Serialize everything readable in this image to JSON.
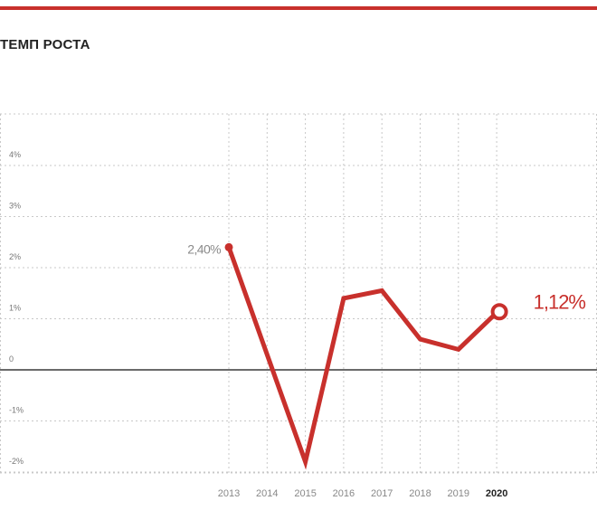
{
  "title": "ТЕМП РОСТА",
  "colors": {
    "accent": "#c8302c",
    "grid": "#c8c8c8",
    "zero_line": "#111111",
    "first_label": "#8a8a8a"
  },
  "chart_data": {
    "type": "line",
    "title": "ТЕМП РОСТА",
    "x": [
      2013,
      2014,
      2015,
      2016,
      2017,
      2018,
      2019,
      2020
    ],
    "x_labels": [
      "2013",
      "2014",
      "2015",
      "2016",
      "2017",
      "2018",
      "2019",
      "2020"
    ],
    "series": [
      {
        "values": [
          2.4,
          0.3,
          -1.8,
          1.4,
          1.55,
          0.6,
          0.4,
          1.12
        ]
      }
    ],
    "y_ticks": [
      4,
      3,
      2,
      1,
      0,
      -1,
      -2
    ],
    "y_tick_labels": [
      "4%",
      "3%",
      "2%",
      "1%",
      "0",
      "-1%",
      "-2%"
    ],
    "ylim": [
      -2.2,
      5
    ],
    "grid": true,
    "annotations": {
      "first": "2,40%",
      "last": "1,12%"
    },
    "highlight_label": "2020"
  }
}
